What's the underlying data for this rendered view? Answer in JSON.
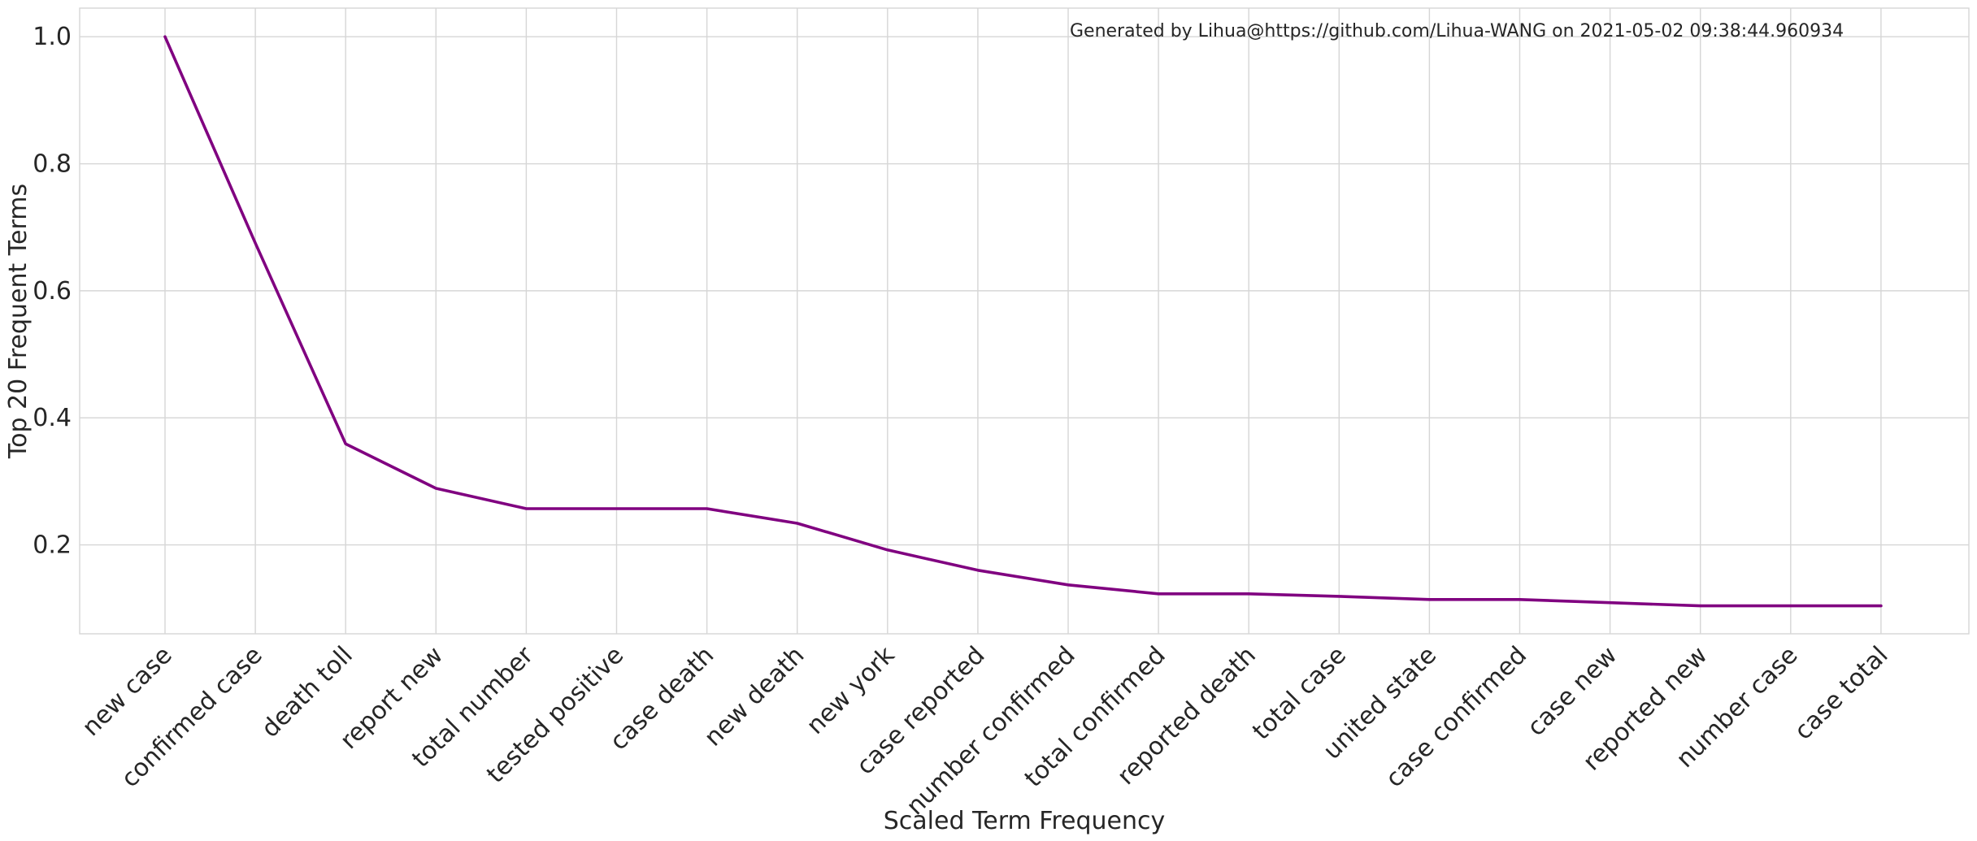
{
  "chart_data": {
    "type": "line",
    "annotation": "Generated by Lihua@https://github.com/Lihua-WANG on 2021-05-02 09:38:44.960934",
    "xlabel": "Scaled Term Frequency",
    "ylabel": "Top 20 Frequent Terms",
    "categories": [
      "new case",
      "confirmed case",
      "death toll",
      "report new",
      "total number",
      "tested positive",
      "case death",
      "new death",
      "new york",
      "case reported",
      "number confirmed",
      "total confirmed",
      "reported death",
      "total case",
      "united state",
      "case confirmed",
      "case new",
      "reported new",
      "number case",
      "case total"
    ],
    "series": [
      {
        "values": [
          1.0,
          0.675,
          0.359,
          0.289,
          0.257,
          0.257,
          0.257,
          0.234,
          0.192,
          0.16,
          0.137,
          0.123,
          0.123,
          0.119,
          0.114,
          0.114,
          0.109,
          0.104,
          0.104,
          0.104
        ],
        "color": "#800080"
      }
    ],
    "yticks": [
      0.2,
      0.4,
      0.6,
      0.8,
      1.0
    ],
    "ylim": [
      0.06,
      1.045
    ],
    "grid": true,
    "x_tick_rotation": 45
  }
}
